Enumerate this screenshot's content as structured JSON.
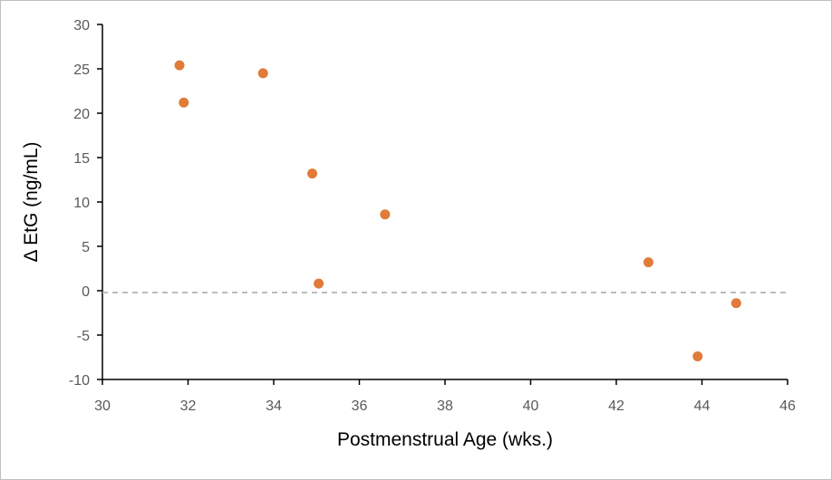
{
  "chart_data": {
    "type": "scatter",
    "title": "",
    "xlabel": "Postmenstrual Age (wks.)",
    "ylabel": "Δ EtG (ng/mL)",
    "xlim": [
      30,
      46
    ],
    "ylim": [
      -10,
      30
    ],
    "xticks": [
      "30",
      "32",
      "34",
      "36",
      "38",
      "40",
      "42",
      "44",
      "46"
    ],
    "yticks": [
      "30",
      "25",
      "20",
      "15",
      "10",
      "5",
      "0",
      "-5",
      "-10"
    ],
    "grid": false,
    "legend": "none",
    "reference_line": {
      "y": 0,
      "style": "dashed"
    },
    "series": [
      {
        "points": [
          {
            "x": 31.8,
            "y": 25.4
          },
          {
            "x": 31.9,
            "y": 21.2
          },
          {
            "x": 33.75,
            "y": 24.5
          },
          {
            "x": 34.9,
            "y": 13.2
          },
          {
            "x": 35.05,
            "y": 0.8
          },
          {
            "x": 36.6,
            "y": 8.6
          },
          {
            "x": 42.75,
            "y": 3.2
          },
          {
            "x": 43.9,
            "y": -7.4
          },
          {
            "x": 44.8,
            "y": -1.4
          }
        ]
      }
    ],
    "colors": {
      "marker": "#e07b39",
      "axis": "#000000",
      "reference": "#a6a6a6"
    }
  }
}
